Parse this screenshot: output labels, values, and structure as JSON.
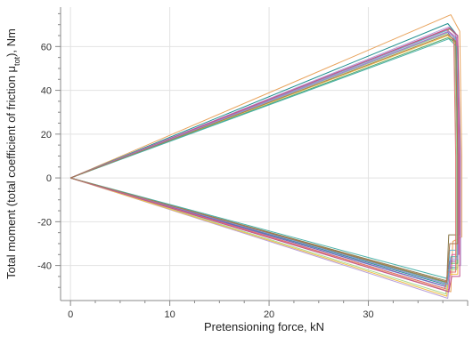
{
  "chart_data": {
    "type": "line",
    "title": "",
    "xlabel": "Pretensioning force, kN",
    "ylabel": "Total moment (total coefficient of friction μ_tot), Nm",
    "ylabel_parts": {
      "before": "Total moment (total coefficient of friction μ",
      "sub": "tot",
      "after": "), Nm"
    },
    "xlim": [
      -1,
      40
    ],
    "ylim": [
      -56,
      78
    ],
    "x_ticks": [
      0,
      10,
      20,
      30
    ],
    "y_ticks": [
      -40,
      -20,
      0,
      20,
      40,
      60
    ],
    "x_tick_labels": [
      "0",
      "10",
      "20",
      "30"
    ],
    "y_tick_labels": [
      "-40",
      "-20",
      "0",
      "20",
      "40",
      "60"
    ],
    "grid": true,
    "legend": "none",
    "series": [
      {
        "color": "#e8a25a",
        "points": [
          [
            0,
            0
          ],
          [
            38.3,
            74.5
          ],
          [
            39.2,
            67
          ],
          [
            39.4,
            10
          ],
          [
            39.4,
            -27
          ],
          [
            38.5,
            -29
          ],
          [
            38.3,
            -52
          ],
          [
            0,
            0
          ]
        ]
      },
      {
        "color": "#1f8f8f",
        "points": [
          [
            0,
            0
          ],
          [
            38.0,
            70.5
          ],
          [
            38.8,
            66
          ],
          [
            39.0,
            10
          ],
          [
            39.0,
            -41
          ],
          [
            38.2,
            -41
          ],
          [
            38.0,
            -49
          ],
          [
            0,
            0
          ]
        ]
      },
      {
        "color": "#b8a0d8",
        "points": [
          [
            0,
            0
          ],
          [
            38.1,
            69
          ],
          [
            39.0,
            64
          ],
          [
            39.3,
            10
          ],
          [
            39.3,
            -40
          ],
          [
            38.3,
            -40
          ],
          [
            38.0,
            -55
          ],
          [
            0,
            0
          ]
        ]
      },
      {
        "color": "#8a7a4a",
        "points": [
          [
            0,
            0
          ],
          [
            38.2,
            68
          ],
          [
            39.0,
            65
          ],
          [
            39.2,
            10
          ],
          [
            39.2,
            -26
          ],
          [
            38.1,
            -26
          ],
          [
            37.9,
            -47
          ],
          [
            0,
            0
          ]
        ]
      },
      {
        "color": "#66b8d8",
        "points": [
          [
            0,
            0
          ],
          [
            38.0,
            67.5
          ],
          [
            38.9,
            63
          ],
          [
            39.1,
            10
          ],
          [
            39.1,
            -33
          ],
          [
            38.2,
            -33
          ],
          [
            38.0,
            -50
          ],
          [
            0,
            0
          ]
        ]
      },
      {
        "color": "#d85aa8",
        "points": [
          [
            0,
            0
          ],
          [
            38.1,
            67
          ],
          [
            38.9,
            64
          ],
          [
            39.1,
            10
          ],
          [
            39.1,
            -35
          ],
          [
            38.4,
            -35
          ],
          [
            38.1,
            -51
          ],
          [
            0,
            0
          ]
        ]
      },
      {
        "color": "#7c5ab8",
        "points": [
          [
            0,
            0
          ],
          [
            38.0,
            66.5
          ],
          [
            38.7,
            62
          ],
          [
            38.9,
            10
          ],
          [
            38.9,
            -38
          ],
          [
            38.2,
            -38
          ],
          [
            37.8,
            -49.5
          ],
          [
            0,
            0
          ]
        ]
      },
      {
        "color": "#a8d890",
        "points": [
          [
            0,
            0
          ],
          [
            37.9,
            66
          ],
          [
            38.7,
            63
          ],
          [
            38.9,
            10
          ],
          [
            38.9,
            -42
          ],
          [
            38.0,
            -42
          ],
          [
            37.8,
            -53
          ],
          [
            0,
            0
          ]
        ]
      },
      {
        "color": "#f0c048",
        "points": [
          [
            0,
            0
          ],
          [
            38.0,
            65
          ],
          [
            38.8,
            61
          ],
          [
            39.0,
            10
          ],
          [
            39.0,
            -44
          ],
          [
            38.1,
            -44
          ],
          [
            37.9,
            -54
          ],
          [
            0,
            0
          ]
        ]
      },
      {
        "color": "#58a868",
        "points": [
          [
            0,
            0
          ],
          [
            38.0,
            64
          ],
          [
            38.8,
            62
          ],
          [
            39.0,
            10
          ],
          [
            39.0,
            -39
          ],
          [
            38.2,
            -39
          ],
          [
            38.0,
            -48
          ],
          [
            0,
            0
          ]
        ]
      },
      {
        "color": "#48b0a8",
        "points": [
          [
            0,
            0
          ],
          [
            38.1,
            63.5
          ],
          [
            38.9,
            60
          ],
          [
            39.0,
            10
          ],
          [
            39.0,
            -36
          ],
          [
            38.3,
            -36
          ],
          [
            38.0,
            -46
          ],
          [
            0,
            0
          ]
        ]
      },
      {
        "color": "#e07070",
        "points": [
          [
            0,
            0
          ],
          [
            37.9,
            67.8
          ],
          [
            38.6,
            64
          ],
          [
            38.8,
            10
          ],
          [
            38.8,
            -43
          ],
          [
            38.0,
            -43
          ],
          [
            37.7,
            -50.5
          ],
          [
            0,
            0
          ]
        ]
      },
      {
        "color": "#c05090",
        "points": [
          [
            0,
            0
          ],
          [
            38.2,
            68.5
          ],
          [
            39.0,
            65
          ],
          [
            39.2,
            10
          ],
          [
            39.2,
            -45
          ],
          [
            38.4,
            -45
          ],
          [
            38.1,
            -52
          ],
          [
            0,
            0
          ]
        ]
      },
      {
        "color": "#9090d8",
        "points": [
          [
            0,
            0
          ],
          [
            38.1,
            66.8
          ],
          [
            38.8,
            63
          ],
          [
            39.0,
            10
          ],
          [
            39.0,
            -37
          ],
          [
            38.3,
            -37
          ],
          [
            38.0,
            -48.5
          ],
          [
            0,
            0
          ]
        ]
      },
      {
        "color": "#a87850",
        "points": [
          [
            0,
            0
          ],
          [
            38.0,
            65.5
          ],
          [
            38.8,
            62.5
          ],
          [
            39.0,
            10
          ],
          [
            39.0,
            -30
          ],
          [
            38.2,
            -30
          ],
          [
            37.9,
            -47.5
          ],
          [
            0,
            0
          ]
        ]
      }
    ]
  }
}
